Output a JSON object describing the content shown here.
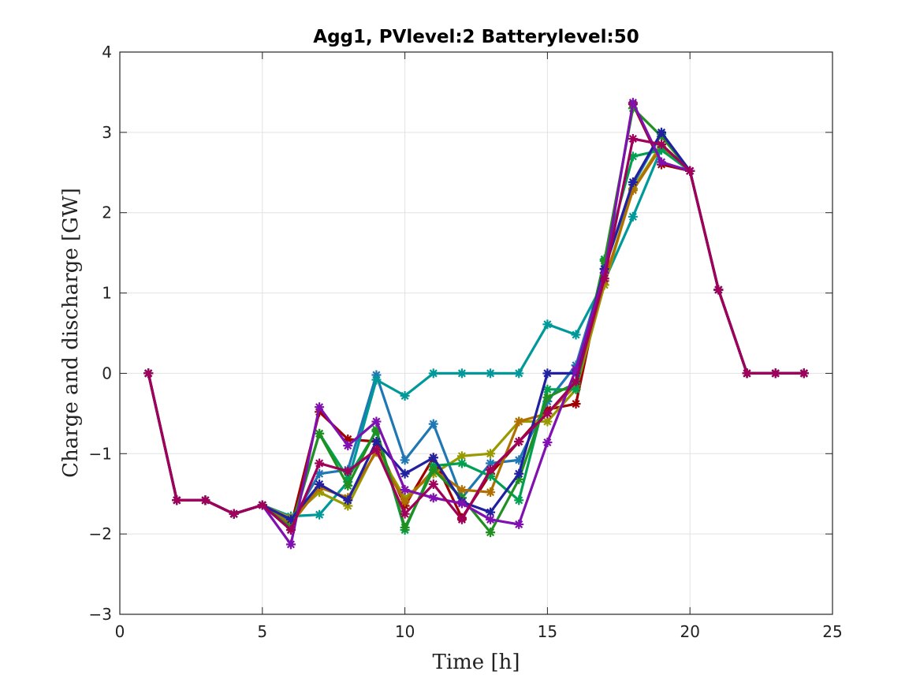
{
  "chart_data": {
    "type": "line",
    "title": "Agg1, PVlevel:2 Batterylevel:50",
    "xlabel": "Time [h]",
    "ylabel": "Charge and discharge [GW]",
    "xlim": [
      0,
      25
    ],
    "ylim": [
      -3,
      4
    ],
    "xticks": [
      "0",
      "5",
      "10",
      "15",
      "20",
      "25"
    ],
    "yticks": [
      "-3",
      "-2",
      "-1",
      "0",
      "1",
      "2",
      "3",
      "4"
    ],
    "grid": true,
    "marker": "asterisk",
    "x": [
      1,
      2,
      3,
      4,
      5,
      6,
      7,
      8,
      9,
      10,
      11,
      12,
      13,
      14,
      15,
      16,
      17,
      18,
      19,
      20,
      21,
      22,
      23,
      24
    ],
    "series": [
      {
        "color": "#a00000",
        "values": [
          0,
          -1.58,
          -1.58,
          -1.75,
          -1.64,
          -1.9,
          -0.48,
          -0.82,
          -0.85,
          -1.65,
          -1.05,
          -1.8,
          -1.25,
          -0.85,
          -0.45,
          -0.38,
          1.3,
          3.35,
          2.6,
          2.52,
          1.04,
          0,
          0,
          0
        ]
      },
      {
        "color": "#1f77b4",
        "values": [
          0,
          -1.58,
          -1.58,
          -1.75,
          -1.64,
          -1.85,
          -1.25,
          -1.2,
          -0.02,
          -1.08,
          -0.63,
          -1.55,
          -1.12,
          -1.08,
          -0.35,
          0.1,
          1.3,
          2.35,
          2.98,
          2.52,
          1.04,
          0,
          0,
          0
        ]
      },
      {
        "color": "#009999",
        "values": [
          0,
          -1.58,
          -1.58,
          -1.75,
          -1.64,
          -1.78,
          -1.76,
          -1.35,
          -0.08,
          -0.28,
          0,
          0,
          0,
          0,
          0.61,
          0.48,
          1.15,
          1.95,
          2.8,
          2.52,
          1.04,
          0,
          0,
          0
        ]
      },
      {
        "color": "#999900",
        "values": [
          0,
          -1.58,
          -1.58,
          -1.75,
          -1.64,
          -1.8,
          -1.48,
          -1.65,
          -0.95,
          -1.55,
          -1.25,
          -1.03,
          -1.0,
          -0.6,
          -0.6,
          -0.2,
          1.1,
          2.3,
          2.85,
          2.52,
          1.04,
          0,
          0,
          0
        ]
      },
      {
        "color": "#b07000",
        "values": [
          0,
          -1.58,
          -1.58,
          -1.75,
          -1.64,
          -1.88,
          -1.42,
          -1.55,
          -0.98,
          -1.6,
          -1.2,
          -1.45,
          -1.48,
          -0.6,
          -0.5,
          -0.15,
          1.15,
          2.28,
          2.82,
          2.52,
          1.04,
          0,
          0,
          0
        ]
      },
      {
        "color": "#00a050",
        "values": [
          0,
          -1.58,
          -1.58,
          -1.75,
          -1.64,
          -1.95,
          -0.75,
          -1.3,
          -0.72,
          -1.95,
          -1.15,
          -1.12,
          -1.28,
          -1.58,
          -0.2,
          -0.2,
          1.42,
          2.7,
          2.78,
          2.52,
          1.04,
          0,
          0,
          0
        ]
      },
      {
        "color": "#209020",
        "values": [
          0,
          -1.58,
          -1.58,
          -1.75,
          -1.64,
          -1.92,
          -0.75,
          -1.4,
          -0.7,
          -1.92,
          -1.2,
          -1.55,
          -1.98,
          -1.32,
          -0.3,
          -0.12,
          1.4,
          3.3,
          2.95,
          2.52,
          1.04,
          0,
          0,
          0
        ]
      },
      {
        "color": "#2020a0",
        "values": [
          0,
          -1.58,
          -1.58,
          -1.75,
          -1.64,
          -1.82,
          -1.38,
          -1.58,
          -0.85,
          -1.25,
          -1.05,
          -1.6,
          -1.73,
          -1.25,
          0,
          0,
          1.3,
          2.38,
          3.0,
          2.52,
          1.04,
          0,
          0,
          0
        ]
      },
      {
        "color": "#8010b0",
        "values": [
          0,
          -1.58,
          -1.58,
          -1.75,
          -1.64,
          -2.13,
          -0.42,
          -0.9,
          -0.6,
          -1.45,
          -1.55,
          -1.62,
          -1.82,
          -1.88,
          -0.86,
          0.05,
          1.25,
          3.37,
          2.63,
          2.52,
          1.04,
          0,
          0,
          0
        ]
      },
      {
        "color": "#a0005a",
        "values": [
          0,
          -1.58,
          -1.58,
          -1.75,
          -1.64,
          -1.95,
          -1.12,
          -1.22,
          -0.95,
          -1.75,
          -1.38,
          -1.82,
          -1.2,
          -0.85,
          -0.5,
          -0.1,
          1.18,
          2.92,
          2.85,
          2.52,
          1.04,
          0,
          0,
          0
        ]
      }
    ]
  }
}
